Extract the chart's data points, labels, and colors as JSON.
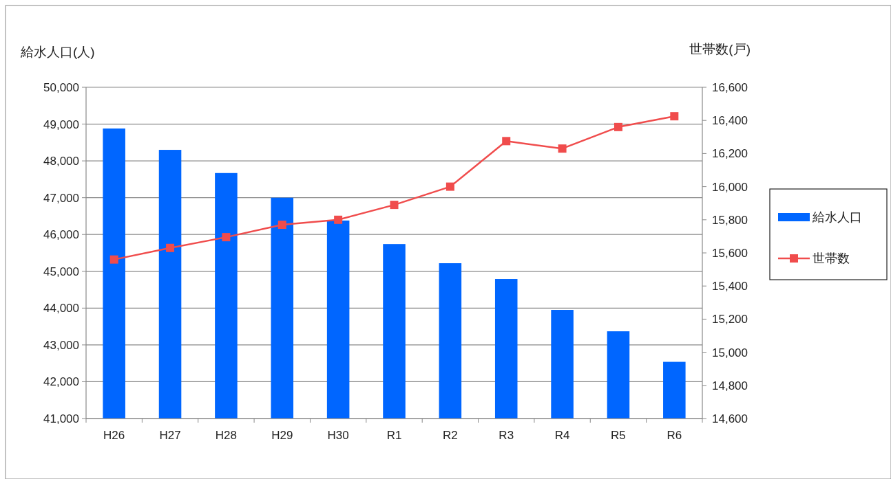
{
  "chart_data": {
    "type": "bar",
    "ylabel": "給水人口(人)",
    "y2label": "世帯数(戸)",
    "categories": [
      "H26",
      "H27",
      "H28",
      "H29",
      "H30",
      "R1",
      "R2",
      "R3",
      "R4",
      "R5",
      "R6"
    ],
    "series": [
      {
        "name": "給水人口",
        "color": "#0066ff",
        "values": [
          48880,
          48300,
          47670,
          47000,
          46380,
          45740,
          45220,
          44790,
          43950,
          43370,
          42540
        ]
      },
      {
        "name": "世帯数",
        "type": "line",
        "axis": "y2",
        "color": "#f04c4c",
        "marker": "square",
        "values": [
          15560,
          15630,
          15695,
          15770,
          15800,
          15890,
          16000,
          16275,
          16230,
          16360,
          16425
        ]
      }
    ],
    "ylim": [
      41000,
      50000
    ],
    "yticks": [
      {
        "value": 41000,
        "label": "41,000"
      },
      {
        "value": 42000,
        "label": "42,000"
      },
      {
        "value": 43000,
        "label": "43,000"
      },
      {
        "value": 44000,
        "label": "44,000"
      },
      {
        "value": 45000,
        "label": "45,000"
      },
      {
        "value": 46000,
        "label": "46,000"
      },
      {
        "value": 47000,
        "label": "47,000"
      },
      {
        "value": 48000,
        "label": "48,000"
      },
      {
        "value": 49000,
        "label": "49,000"
      },
      {
        "value": 50000,
        "label": "50,000"
      }
    ],
    "y2lim": [
      14600,
      16600
    ],
    "y2ticks": [
      {
        "value": 14600,
        "label": "14,600"
      },
      {
        "value": 14800,
        "label": "14,800"
      },
      {
        "value": 15000,
        "label": "15,000"
      },
      {
        "value": 15200,
        "label": "15,200"
      },
      {
        "value": 15400,
        "label": "15,400"
      },
      {
        "value": 15600,
        "label": "15,600"
      },
      {
        "value": 15800,
        "label": "15,800"
      },
      {
        "value": 16000,
        "label": "16,000"
      },
      {
        "value": 16200,
        "label": "16,200"
      },
      {
        "value": 16400,
        "label": "16,400"
      },
      {
        "value": 16600,
        "label": "16,600"
      }
    ],
    "grid": "y",
    "legend": "right"
  }
}
